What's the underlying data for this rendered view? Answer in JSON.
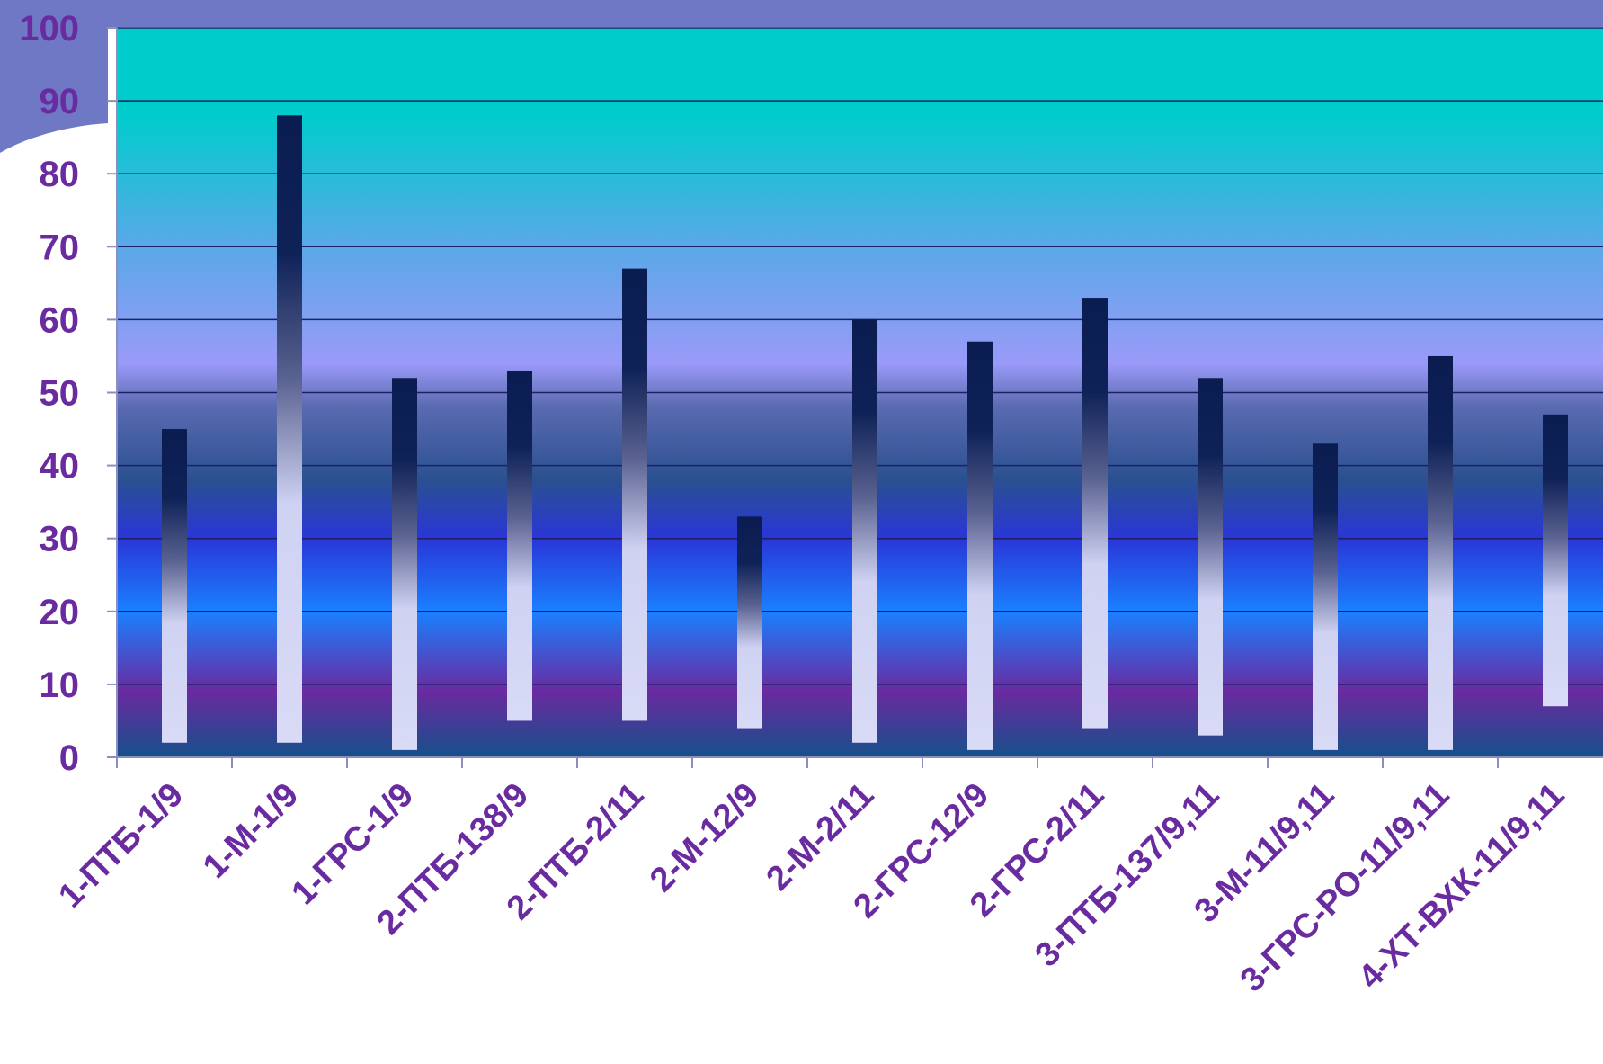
{
  "colors": {
    "bar_top": "#0a1c50",
    "bar_bottom": "#d4d6f4",
    "label_color": "#6a2aa0",
    "gridline": "#1a2060",
    "axis_line": "#8a8fc0",
    "corner_accent": "#6e78c4"
  },
  "chart_data": {
    "type": "bar",
    "title": "",
    "xlabel": "",
    "ylabel": "",
    "ylim": [
      0,
      100
    ],
    "yticks": [
      0,
      10,
      20,
      30,
      40,
      50,
      60,
      70,
      80,
      90,
      100
    ],
    "ytick_labels": [
      "0",
      "10",
      "20",
      "30",
      "40",
      "50",
      "60",
      "70",
      "80",
      "90",
      "100"
    ],
    "grid": true,
    "legend": "none",
    "categories": [
      "1-ПТБ-1/9",
      "1-М-1/9",
      "1-ГРС-1/9",
      "2-ПТБ-138/9",
      "2-ПТБ-2/11",
      "2-М-12/9",
      "2-М-2/11",
      "2-ГРС-12/9",
      "2-ГРС-2/11",
      "3-ПТБ-137/9,11",
      "3-М-11/9,11",
      "3-ГРС-РО-11/9,11",
      "4-ХТ-ВХК-11/9,11"
    ],
    "series": [
      {
        "base": [
          2,
          2,
          1,
          5,
          5,
          4,
          2,
          1,
          4,
          3,
          1,
          1,
          7
        ],
        "values": [
          45,
          88,
          52,
          53,
          67,
          33,
          60,
          57,
          63,
          52,
          43,
          55,
          47
        ]
      }
    ]
  }
}
